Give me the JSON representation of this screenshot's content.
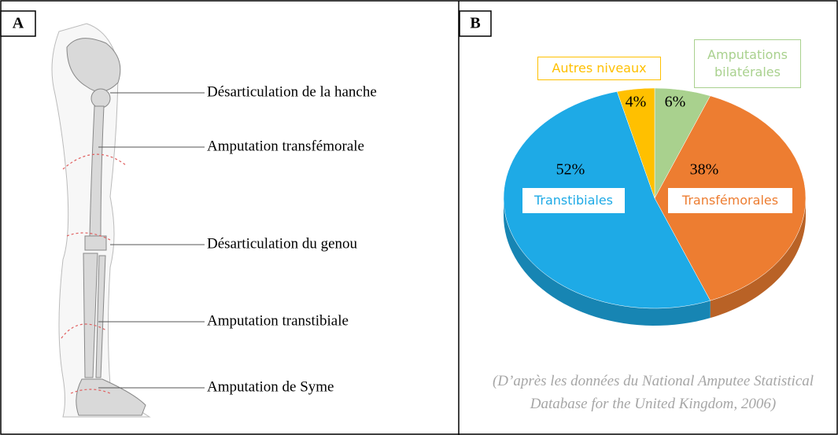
{
  "panel_a": {
    "label": "A",
    "annotations": [
      "Désarticulation de la hanche",
      "Amputation transfémorale",
      "Désarticulation du genou",
      "Amputation transtibiale",
      "Amputation de Syme"
    ]
  },
  "chart_data": {
    "type": "pie",
    "panel_label": "B",
    "categories": [
      "Amputations bilatérales",
      "Transfémorales",
      "Transtibiales",
      "Autres niveaux"
    ],
    "values": [
      6,
      38,
      52,
      4
    ],
    "value_labels": [
      "6%",
      "38%",
      "52%",
      "4%"
    ],
    "colors": [
      "#a9d18e",
      "#ed7d31",
      "#1eaae6",
      "#ffc000"
    ],
    "source": "(D’après les données du National Amputee Statistical Database for the United Kingdom, 2006)"
  }
}
